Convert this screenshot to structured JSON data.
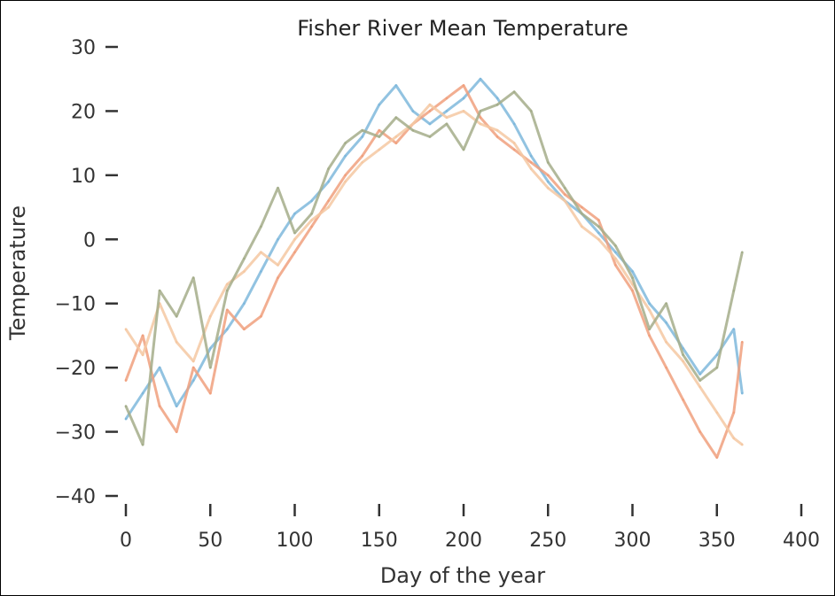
{
  "chart_data": {
    "type": "line",
    "title": "Fisher River Mean Temperature",
    "xlabel": "Day of the year",
    "ylabel": "Temperature",
    "xlim": [
      0,
      400
    ],
    "ylim": [
      -40,
      30
    ],
    "x_ticks": [
      "0",
      "50",
      "100",
      "150",
      "200",
      "250",
      "300",
      "350",
      "400"
    ],
    "y_ticks": [
      "30",
      "20",
      "10",
      "0",
      "−10",
      "−20",
      "−30",
      "−40"
    ],
    "grid": false,
    "series": [
      {
        "color": "#7fb8dc",
        "x": [
          0,
          10,
          20,
          30,
          40,
          50,
          60,
          70,
          80,
          90,
          100,
          110,
          120,
          130,
          140,
          150,
          160,
          170,
          180,
          190,
          200,
          210,
          220,
          230,
          240,
          250,
          260,
          270,
          280,
          290,
          300,
          310,
          320,
          330,
          340,
          350,
          360,
          365
        ],
        "values": [
          -28,
          -24,
          -20,
          -26,
          -22,
          -17,
          -14,
          -10,
          -5,
          0,
          4,
          6,
          9,
          13,
          16,
          21,
          24,
          20,
          18,
          20,
          22,
          25,
          22,
          18,
          13,
          9,
          6,
          4,
          1,
          -2,
          -5,
          -10,
          -13,
          -17,
          -21,
          -18,
          -14,
          -24
        ]
      },
      {
        "color": "#f0a07e",
        "x": [
          0,
          10,
          20,
          30,
          40,
          50,
          60,
          70,
          80,
          90,
          100,
          110,
          120,
          130,
          140,
          150,
          160,
          170,
          180,
          190,
          200,
          210,
          220,
          230,
          240,
          250,
          260,
          270,
          280,
          290,
          300,
          310,
          320,
          330,
          340,
          350,
          360,
          365
        ],
        "values": [
          -22,
          -15,
          -26,
          -30,
          -20,
          -24,
          -11,
          -14,
          -12,
          -6,
          -2,
          2,
          6,
          10,
          13,
          17,
          15,
          18,
          20,
          22,
          24,
          19,
          16,
          14,
          12,
          10,
          7,
          5,
          3,
          -4,
          -8,
          -15,
          -20,
          -25,
          -30,
          -34,
          -27,
          -16
        ]
      },
      {
        "color": "#f5c8a2",
        "x": [
          0,
          10,
          20,
          30,
          40,
          50,
          60,
          70,
          80,
          90,
          100,
          110,
          120,
          130,
          140,
          150,
          160,
          170,
          180,
          190,
          200,
          210,
          220,
          230,
          240,
          250,
          260,
          270,
          280,
          290,
          300,
          310,
          320,
          330,
          340,
          350,
          360,
          365
        ],
        "values": [
          -14,
          -18,
          -10,
          -16,
          -19,
          -12,
          -7,
          -5,
          -2,
          -4,
          0,
          3,
          5,
          9,
          12,
          14,
          16,
          18,
          21,
          19,
          20,
          18,
          17,
          15,
          11,
          8,
          6,
          2,
          0,
          -3,
          -7,
          -11,
          -16,
          -19,
          -23,
          -27,
          -31,
          -32
        ]
      },
      {
        "color": "#a4ad8a",
        "x": [
          0,
          10,
          20,
          30,
          40,
          50,
          60,
          70,
          80,
          90,
          100,
          110,
          120,
          130,
          140,
          150,
          160,
          170,
          180,
          190,
          200,
          210,
          220,
          230,
          240,
          250,
          260,
          270,
          280,
          290,
          300,
          310,
          320,
          330,
          340,
          350,
          360,
          365
        ],
        "values": [
          -26,
          -32,
          -8,
          -12,
          -6,
          -20,
          -8,
          -3,
          2,
          8,
          1,
          4,
          11,
          15,
          17,
          16,
          19,
          17,
          16,
          18,
          14,
          20,
          21,
          23,
          20,
          12,
          8,
          4,
          2,
          -1,
          -6,
          -14,
          -10,
          -18,
          -22,
          -20,
          -8,
          -2
        ]
      }
    ]
  }
}
